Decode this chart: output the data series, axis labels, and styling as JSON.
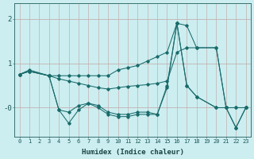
{
  "title": "",
  "xlabel": "Humidex (Indice chaleur)",
  "bg_color": "#cceef0",
  "line_color": "#1a6b6b",
  "grid_color": "#c4b0b0",
  "xlim": [
    -0.5,
    23.5
  ],
  "ylim": [
    -0.65,
    2.35
  ],
  "yticks": [
    0,
    1,
    2
  ],
  "ytick_labels": [
    "-0",
    "1",
    "2"
  ],
  "xticks": [
    0,
    1,
    2,
    3,
    4,
    5,
    6,
    7,
    8,
    9,
    10,
    11,
    12,
    13,
    14,
    15,
    16,
    17,
    18,
    19,
    20,
    21,
    22,
    23
  ],
  "lines": [
    {
      "x": [
        0,
        1,
        3,
        4,
        5,
        6,
        7,
        8,
        9,
        10,
        11,
        12,
        13,
        14,
        15,
        16,
        17,
        18,
        20,
        21,
        22,
        23
      ],
      "y": [
        0.75,
        0.85,
        0.72,
        0.72,
        0.72,
        0.72,
        0.72,
        0.72,
        0.72,
        0.85,
        0.9,
        0.95,
        1.05,
        1.15,
        1.25,
        1.9,
        1.85,
        1.35,
        1.35,
        0.0,
        0.0,
        0.0
      ]
    },
    {
      "x": [
        0,
        1,
        3,
        4,
        5,
        6,
        7,
        8,
        9,
        10,
        11,
        12,
        13,
        14,
        15,
        16,
        17,
        18,
        20,
        21,
        22,
        23
      ],
      "y": [
        0.75,
        0.82,
        0.72,
        0.65,
        0.6,
        0.55,
        0.5,
        0.45,
        0.42,
        0.45,
        0.48,
        0.5,
        0.52,
        0.55,
        0.6,
        1.25,
        1.35,
        1.35,
        1.35,
        0.0,
        0.0,
        0.0
      ]
    },
    {
      "x": [
        0,
        1,
        3,
        4,
        5,
        6,
        7,
        8,
        9,
        10,
        11,
        12,
        13,
        14,
        15,
        16,
        17,
        18,
        20,
        21,
        22,
        23
      ],
      "y": [
        0.75,
        0.82,
        0.72,
        -0.05,
        -0.1,
        0.05,
        0.1,
        0.05,
        -0.1,
        -0.15,
        -0.15,
        -0.1,
        -0.1,
        -0.15,
        0.5,
        1.9,
        0.5,
        0.25,
        0.0,
        0.0,
        -0.45,
        0.0
      ]
    },
    {
      "x": [
        0,
        1,
        3,
        4,
        5,
        6,
        7,
        8,
        9,
        10,
        11,
        12,
        13,
        14,
        15,
        16,
        17,
        18,
        20,
        21,
        22,
        23
      ],
      "y": [
        0.75,
        0.82,
        0.72,
        -0.05,
        -0.35,
        -0.05,
        0.1,
        0.0,
        -0.15,
        -0.2,
        -0.2,
        -0.15,
        -0.15,
        -0.15,
        0.45,
        1.9,
        0.5,
        0.25,
        0.0,
        0.0,
        -0.45,
        0.0
      ]
    }
  ]
}
